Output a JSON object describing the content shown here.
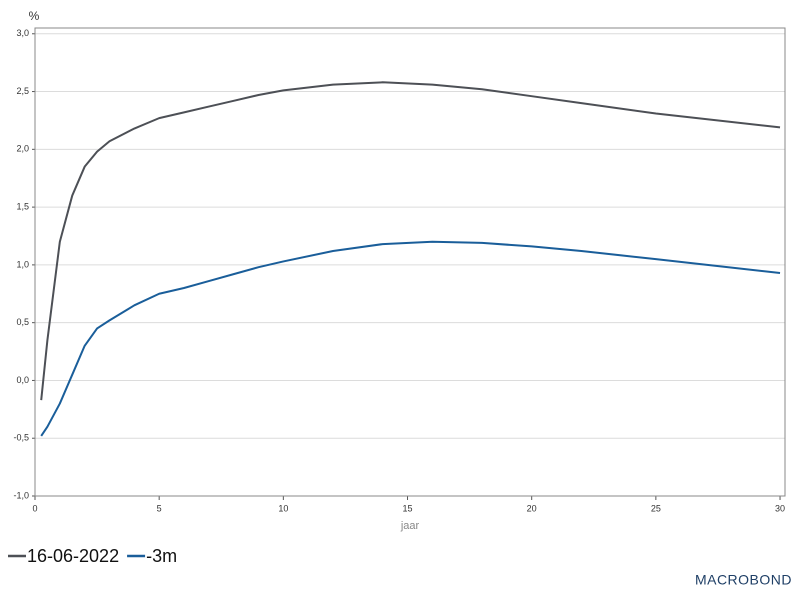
{
  "chart_data": {
    "type": "line",
    "y_label": "%",
    "x_label": "jaar",
    "x": [
      0.25,
      0.5,
      1,
      1.5,
      2,
      2.5,
      3,
      4,
      5,
      6,
      7,
      8,
      9,
      10,
      12,
      14,
      16,
      18,
      20,
      22,
      25,
      30
    ],
    "series": [
      {
        "name": "16-06-2022",
        "color": "#4d5056",
        "values": [
          -0.17,
          0.35,
          1.2,
          1.6,
          1.85,
          1.98,
          2.07,
          2.18,
          2.27,
          2.32,
          2.37,
          2.42,
          2.47,
          2.51,
          2.56,
          2.58,
          2.56,
          2.52,
          2.46,
          2.4,
          2.31,
          2.19
        ]
      },
      {
        "name": "-3m",
        "color": "#1a5e9a",
        "values": [
          -0.48,
          -0.4,
          -0.2,
          0.05,
          0.3,
          0.45,
          0.52,
          0.65,
          0.75,
          0.8,
          0.86,
          0.92,
          0.98,
          1.03,
          1.12,
          1.18,
          1.2,
          1.19,
          1.16,
          1.12,
          1.05,
          0.93
        ]
      }
    ],
    "xlim": [
      0,
      30.2
    ],
    "xticks": [
      0,
      5,
      10,
      15,
      20,
      25,
      30
    ],
    "ylim": [
      -1.0,
      3.05
    ],
    "yticks": [
      {
        "value": -1.0,
        "label": "-1,0"
      },
      {
        "value": -0.5,
        "label": "-0,5"
      },
      {
        "value": 0.0,
        "label": "0,0"
      },
      {
        "value": 0.5,
        "label": "0,5"
      },
      {
        "value": 1.0,
        "label": "1,0"
      },
      {
        "value": 1.5,
        "label": "1,5"
      },
      {
        "value": 2.0,
        "label": "2,0"
      },
      {
        "value": 2.5,
        "label": "2,5"
      },
      {
        "value": 3.0,
        "label": "3,0"
      }
    ],
    "grid": true,
    "watermark": "MACROBOND"
  }
}
